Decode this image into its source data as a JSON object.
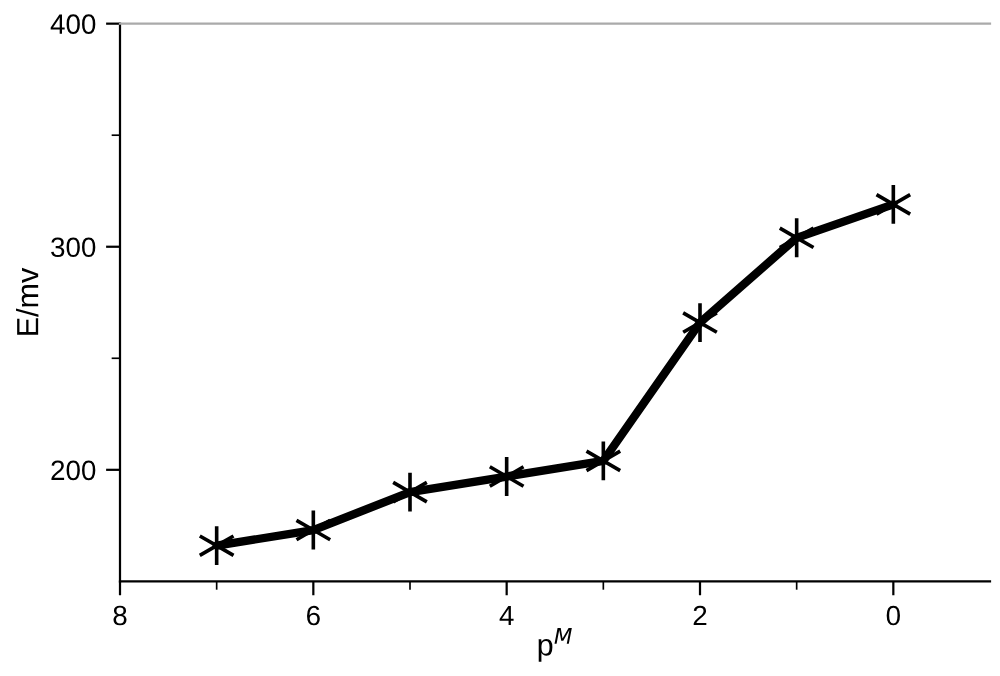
{
  "chart_data": {
    "type": "line",
    "xlabel": "p$^{M}$",
    "ylabel": "E/mv",
    "x": [
      7,
      6,
      5,
      4,
      3,
      2,
      1,
      0
    ],
    "series": [
      {
        "color": "#000000",
        "values": [
          166,
          173,
          190,
          197,
          204,
          266,
          304,
          319
        ]
      }
    ],
    "marker": "cross",
    "line_style": "solid",
    "grid": false,
    "legend": false,
    "xlim": [
      8,
      -1
    ],
    "ylim": [
      150,
      400
    ],
    "xticks": [
      8,
      {
        "value": 7,
        "label": null
      },
      6,
      {
        "value": 5,
        "label": null
      },
      4,
      {
        "value": 3,
        "label": null
      },
      2,
      {
        "value": 1,
        "label": null
      },
      0
    ],
    "yticks": [
      {
        "value": 250,
        "label": null
      },
      200,
      300,
      {
        "value": 350,
        "label": null
      },
      400
    ]
  }
}
